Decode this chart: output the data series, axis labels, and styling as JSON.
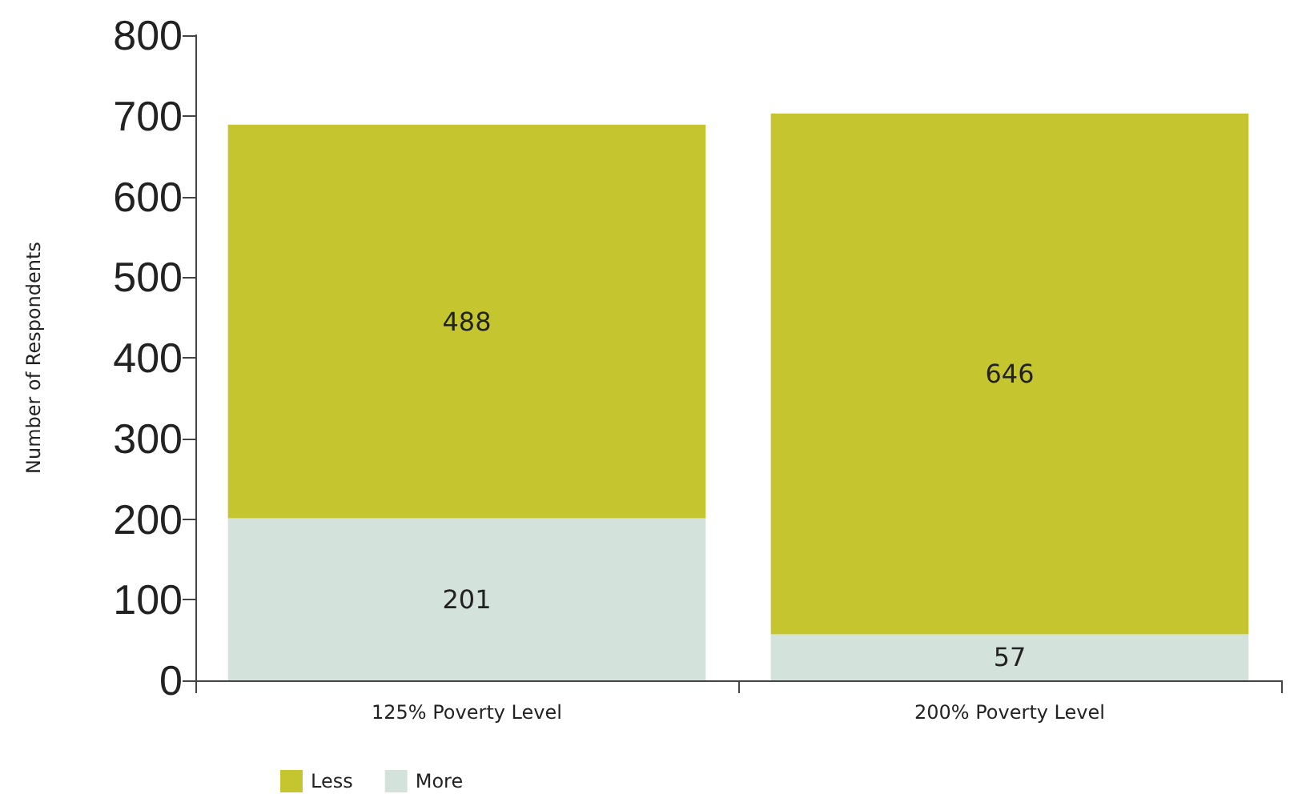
{
  "chart_data": {
    "type": "bar",
    "stacked": true,
    "ylabel": "Number of Respondents",
    "categories": [
      "125% Poverty Level",
      "200% Poverty Level"
    ],
    "series": [
      {
        "name": "More",
        "color": "#d3e3dc",
        "values": [
          201,
          57
        ]
      },
      {
        "name": "Less",
        "color": "#c5c62f",
        "values": [
          488,
          646
        ]
      }
    ],
    "ylim": [
      0,
      800
    ],
    "yticks": [
      0,
      100,
      200,
      300,
      400,
      500,
      600,
      700,
      800
    ],
    "grid": false,
    "legend": "bottom left",
    "data_labels": true
  }
}
